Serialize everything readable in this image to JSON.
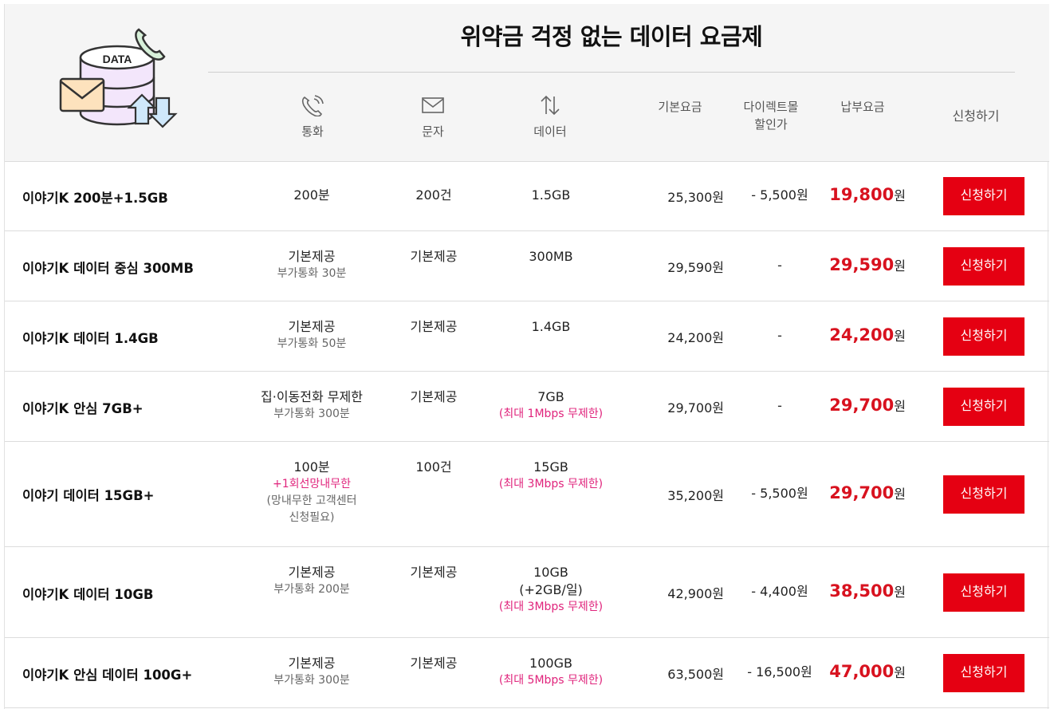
{
  "header": {
    "title": "위약금 걱정 없는 데이터 요금제",
    "logo_text": "DATA",
    "columns": {
      "call": "통화",
      "sms": "문자",
      "data": "데이터",
      "base_fee": "기본요금",
      "direct_discount_line1": "다이렉트몰",
      "direct_discount_line2": "할인가",
      "pay_fee": "납부요금",
      "apply": "신청하기"
    },
    "icons": [
      "phone-icon",
      "mail-icon",
      "up-down-arrows-icon"
    ]
  },
  "plans": [
    {
      "name": "이야기K 200분+1.5GB",
      "call": "200분",
      "call_sub": "",
      "call_extra": "",
      "call_note1": "",
      "call_note2": "",
      "sms": "200건",
      "data": "1.5GB",
      "data_extra": "",
      "data_note": "",
      "base_fee": "25,300원",
      "discount": "- 5,500원",
      "pay_amount": "19,800",
      "pay_unit": "원",
      "apply_label": "신청하기"
    },
    {
      "name": "이야기K 데이터 중심 300MB",
      "call": "기본제공",
      "call_sub": "부가통화 30분",
      "call_extra": "",
      "call_note1": "",
      "call_note2": "",
      "sms": "기본제공",
      "data": "300MB",
      "data_extra": "",
      "data_note": "",
      "base_fee": "29,590원",
      "discount": "-",
      "pay_amount": "29,590",
      "pay_unit": "원",
      "apply_label": "신청하기"
    },
    {
      "name": "이야기K 데이터 1.4GB",
      "call": "기본제공",
      "call_sub": "부가통화 50분",
      "call_extra": "",
      "call_note1": "",
      "call_note2": "",
      "sms": "기본제공",
      "data": "1.4GB",
      "data_extra": "",
      "data_note": "",
      "base_fee": "24,200원",
      "discount": "-",
      "pay_amount": "24,200",
      "pay_unit": "원",
      "apply_label": "신청하기"
    },
    {
      "name": "이야기K 안심 7GB+",
      "call": "집·이동전화 무제한",
      "call_sub": "부가통화 300분",
      "call_extra": "",
      "call_note1": "",
      "call_note2": "",
      "sms": "기본제공",
      "data": "7GB",
      "data_extra": "",
      "data_note": "(최대 1Mbps 무제한)",
      "base_fee": "29,700원",
      "discount": "-",
      "pay_amount": "29,700",
      "pay_unit": "원",
      "apply_label": "신청하기"
    },
    {
      "name": "이야기 데이터 15GB+",
      "call": "100분",
      "call_sub": "",
      "call_extra": "+1회선망내무한",
      "call_note1": "(망내무한 고객센터",
      "call_note2": "신청필요)",
      "sms": "100건",
      "data": "15GB",
      "data_extra": "",
      "data_note": "(최대 3Mbps 무제한)",
      "base_fee": "35,200원",
      "discount": "- 5,500원",
      "pay_amount": "29,700",
      "pay_unit": "원",
      "apply_label": "신청하기"
    },
    {
      "name": "이야기K 데이터 10GB",
      "call": "기본제공",
      "call_sub": "부가통화 200분",
      "call_extra": "",
      "call_note1": "",
      "call_note2": "",
      "sms": "기본제공",
      "data": "10GB",
      "data_extra": "(+2GB/일)",
      "data_note": "(최대 3Mbps 무제한)",
      "base_fee": "42,900원",
      "discount": "- 4,400원",
      "pay_amount": "38,500",
      "pay_unit": "원",
      "apply_label": "신청하기"
    },
    {
      "name": "이야기K 안심 데이터 100G+",
      "call": "기본제공",
      "call_sub": "부가통화 300분",
      "call_extra": "",
      "call_note1": "",
      "call_note2": "",
      "sms": "기본제공",
      "data": "100GB",
      "data_extra": "",
      "data_note": "(최대 5Mbps 무제한)",
      "base_fee": "63,500원",
      "discount": "- 16,500원",
      "pay_amount": "47,000",
      "pay_unit": "원",
      "apply_label": "신청하기"
    }
  ],
  "colors": {
    "accent_red": "#e50012",
    "price_red": "#d8121f",
    "note_pink": "#e0247c",
    "header_bg": "#f5f5f5"
  }
}
